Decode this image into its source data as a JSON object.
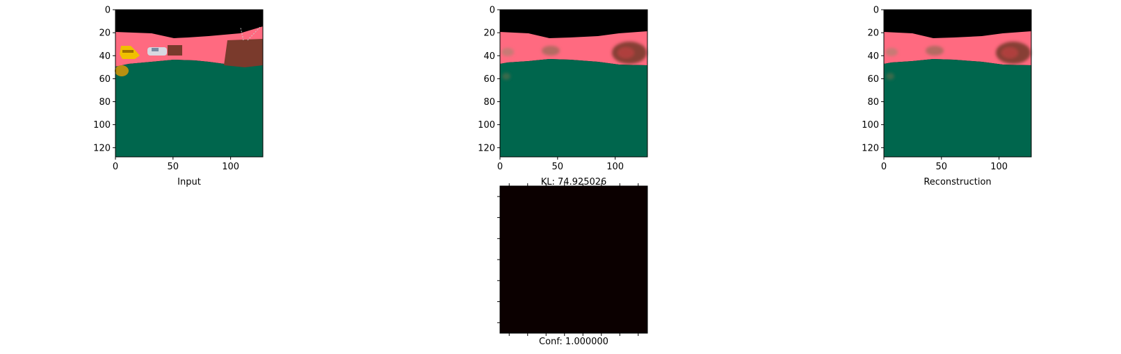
{
  "chart_data": [
    {
      "type": "image",
      "panel": "input",
      "xlabel": "Input",
      "xlim": [
        0,
        128
      ],
      "ylim": [
        128,
        0
      ],
      "xticks": [
        0,
        50,
        100
      ],
      "yticks": [
        0,
        20,
        40,
        60,
        80,
        100,
        120
      ],
      "colors": {
        "sky": "#000000",
        "wall": "#ff6a80",
        "floor": "#00664d"
      },
      "objects": [
        "yellow-object",
        "white-car",
        "brown-box",
        "tv",
        "yellow-blob"
      ]
    },
    {
      "type": "image",
      "panel": "middle",
      "xlabel": "KL: 74.925026",
      "xlim": [
        0,
        128
      ],
      "ylim": [
        128,
        0
      ],
      "xticks": [
        0,
        50,
        100
      ],
      "yticks": [
        0,
        20,
        40,
        60,
        80,
        100,
        120
      ],
      "colors": {
        "sky": "#000000",
        "wall": "#ff6a80",
        "floor": "#00664d"
      },
      "objects": [
        "blurred-blob"
      ]
    },
    {
      "type": "image",
      "panel": "reconstruction",
      "xlabel": "Reconstruction",
      "xlim": [
        0,
        128
      ],
      "ylim": [
        128,
        0
      ],
      "xticks": [
        0,
        50,
        100
      ],
      "yticks": [
        0,
        20,
        40,
        60,
        80,
        100,
        120
      ],
      "colors": {
        "sky": "#000000",
        "wall": "#ff6a80",
        "floor": "#00664d"
      },
      "objects": [
        "blurred-blob"
      ]
    },
    {
      "type": "heatmap",
      "panel": "confidence",
      "xlabel": "Conf: 1.000000",
      "tick_labels_shown": false,
      "xtick_count": 8,
      "ytick_count": 7,
      "colors": {
        "fill": "#0b0000"
      }
    }
  ]
}
